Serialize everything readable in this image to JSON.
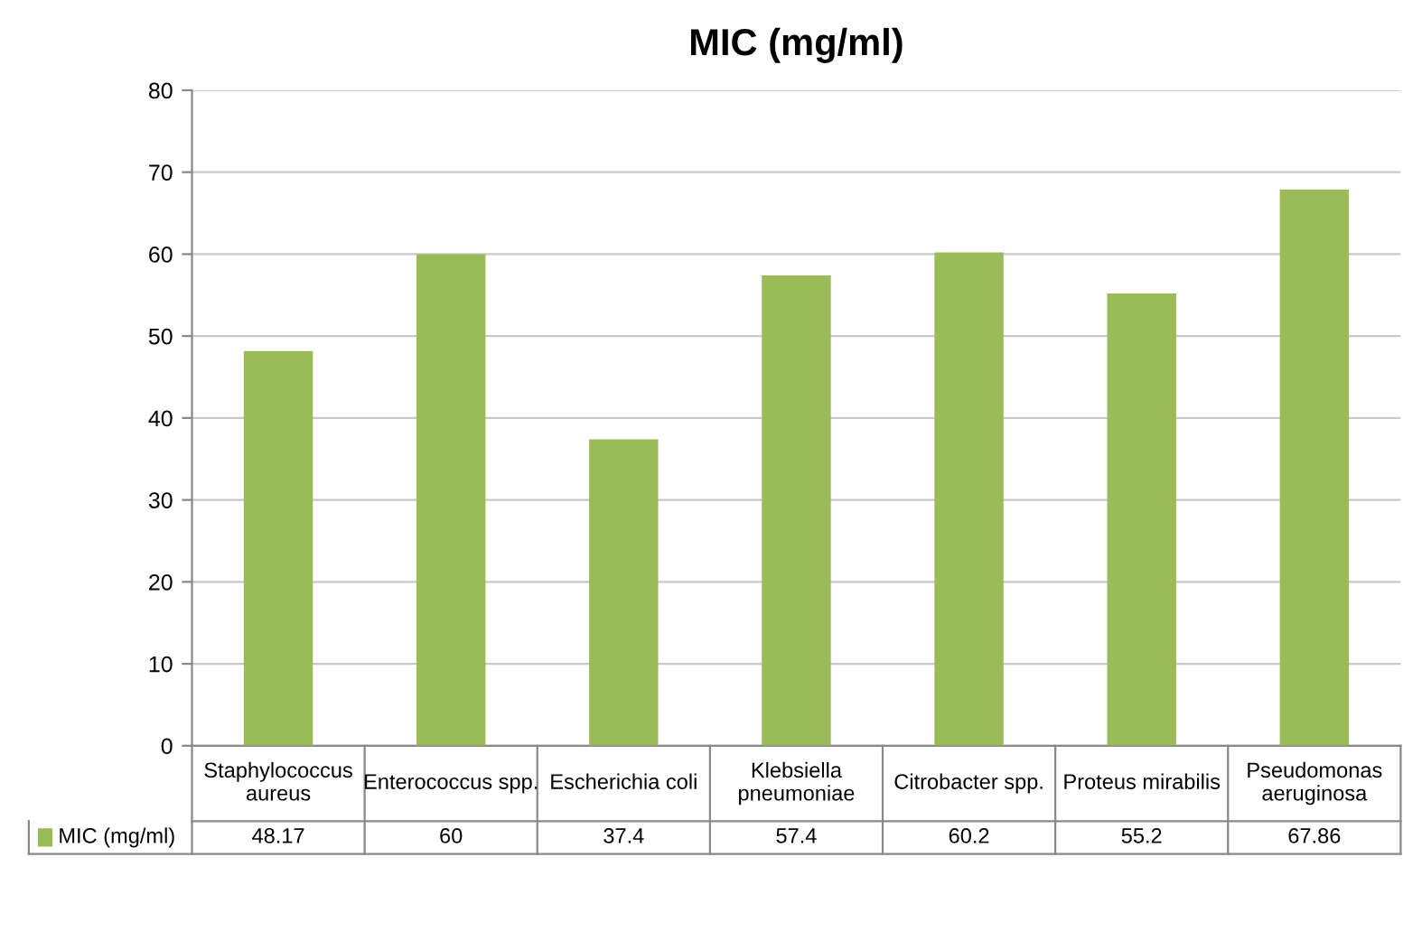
{
  "chart_data": {
    "type": "bar",
    "title": "MIC (mg/ml)",
    "categories": [
      "Staphylococcus aureus",
      "Enterococcus spp.",
      "Escherichia coli",
      "Klebsiella pneumoniae",
      "Citrobacter spp.",
      "Proteus mirabilis",
      "Pseudomonas aeruginosa"
    ],
    "series": [
      {
        "name": "MIC (mg/ml)",
        "color": "#9bbb59",
        "values": [
          48.17,
          60,
          37.4,
          57.4,
          60.2,
          55.2,
          67.86
        ]
      }
    ],
    "ylim": [
      0,
      80
    ],
    "yticks": [
      0,
      10,
      20,
      30,
      40,
      50,
      60,
      70,
      80
    ],
    "grid": "y",
    "data_labels": true,
    "legend": "bottom"
  }
}
